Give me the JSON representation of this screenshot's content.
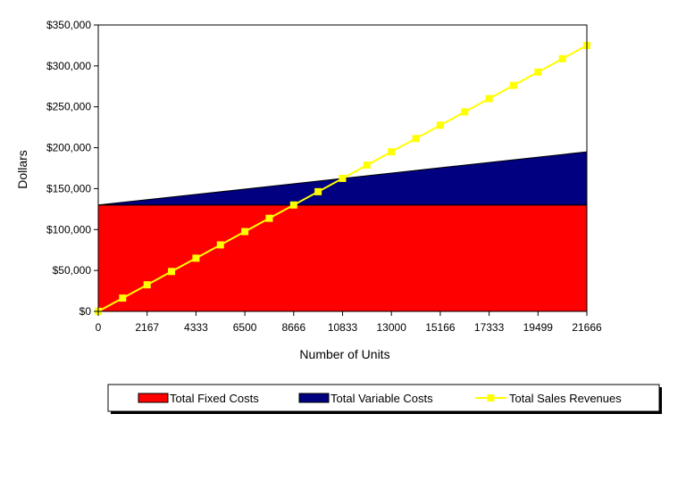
{
  "chart_data": {
    "type": "area",
    "ylabel": "Dollars",
    "xlabel": "Number of Units",
    "x_tick_labels": [
      "0",
      "2167",
      "4333",
      "6500",
      "8666",
      "10833",
      "13000",
      "15166",
      "17333",
      "19499",
      "21666"
    ],
    "y_tick_labels": [
      "$0",
      "$50,000",
      "$100,000",
      "$150,000",
      "$200,000",
      "$250,000",
      "$300,000",
      "$350,000"
    ],
    "ylim": [
      0,
      350000
    ],
    "xlim": [
      0,
      21666
    ],
    "grid": false,
    "legend_position": "bottom",
    "series": [
      {
        "name": "Total Fixed Costs",
        "kind": "area",
        "color": "#ff0000",
        "x": [
          0,
          21666
        ],
        "values": [
          130000,
          130000
        ]
      },
      {
        "name": "Total Variable Costs",
        "kind": "stacked-area",
        "color": "#000080",
        "x": [
          0,
          21666
        ],
        "values": [
          0,
          65000
        ]
      },
      {
        "name": "Total Sales Revenues",
        "kind": "line-marker",
        "color": "#ffff00",
        "x": [
          0,
          1083,
          2167,
          3250,
          4333,
          5417,
          6500,
          7583,
          8666,
          9750,
          10833,
          11916,
          13000,
          14083,
          15166,
          16250,
          17333,
          18416,
          19499,
          20583,
          21666
        ],
        "values": [
          0,
          16250,
          32500,
          48750,
          65000,
          81250,
          97500,
          113750,
          130000,
          146250,
          162500,
          178750,
          195000,
          211250,
          227500,
          243750,
          260000,
          276250,
          292500,
          308750,
          325000
        ]
      }
    ]
  }
}
